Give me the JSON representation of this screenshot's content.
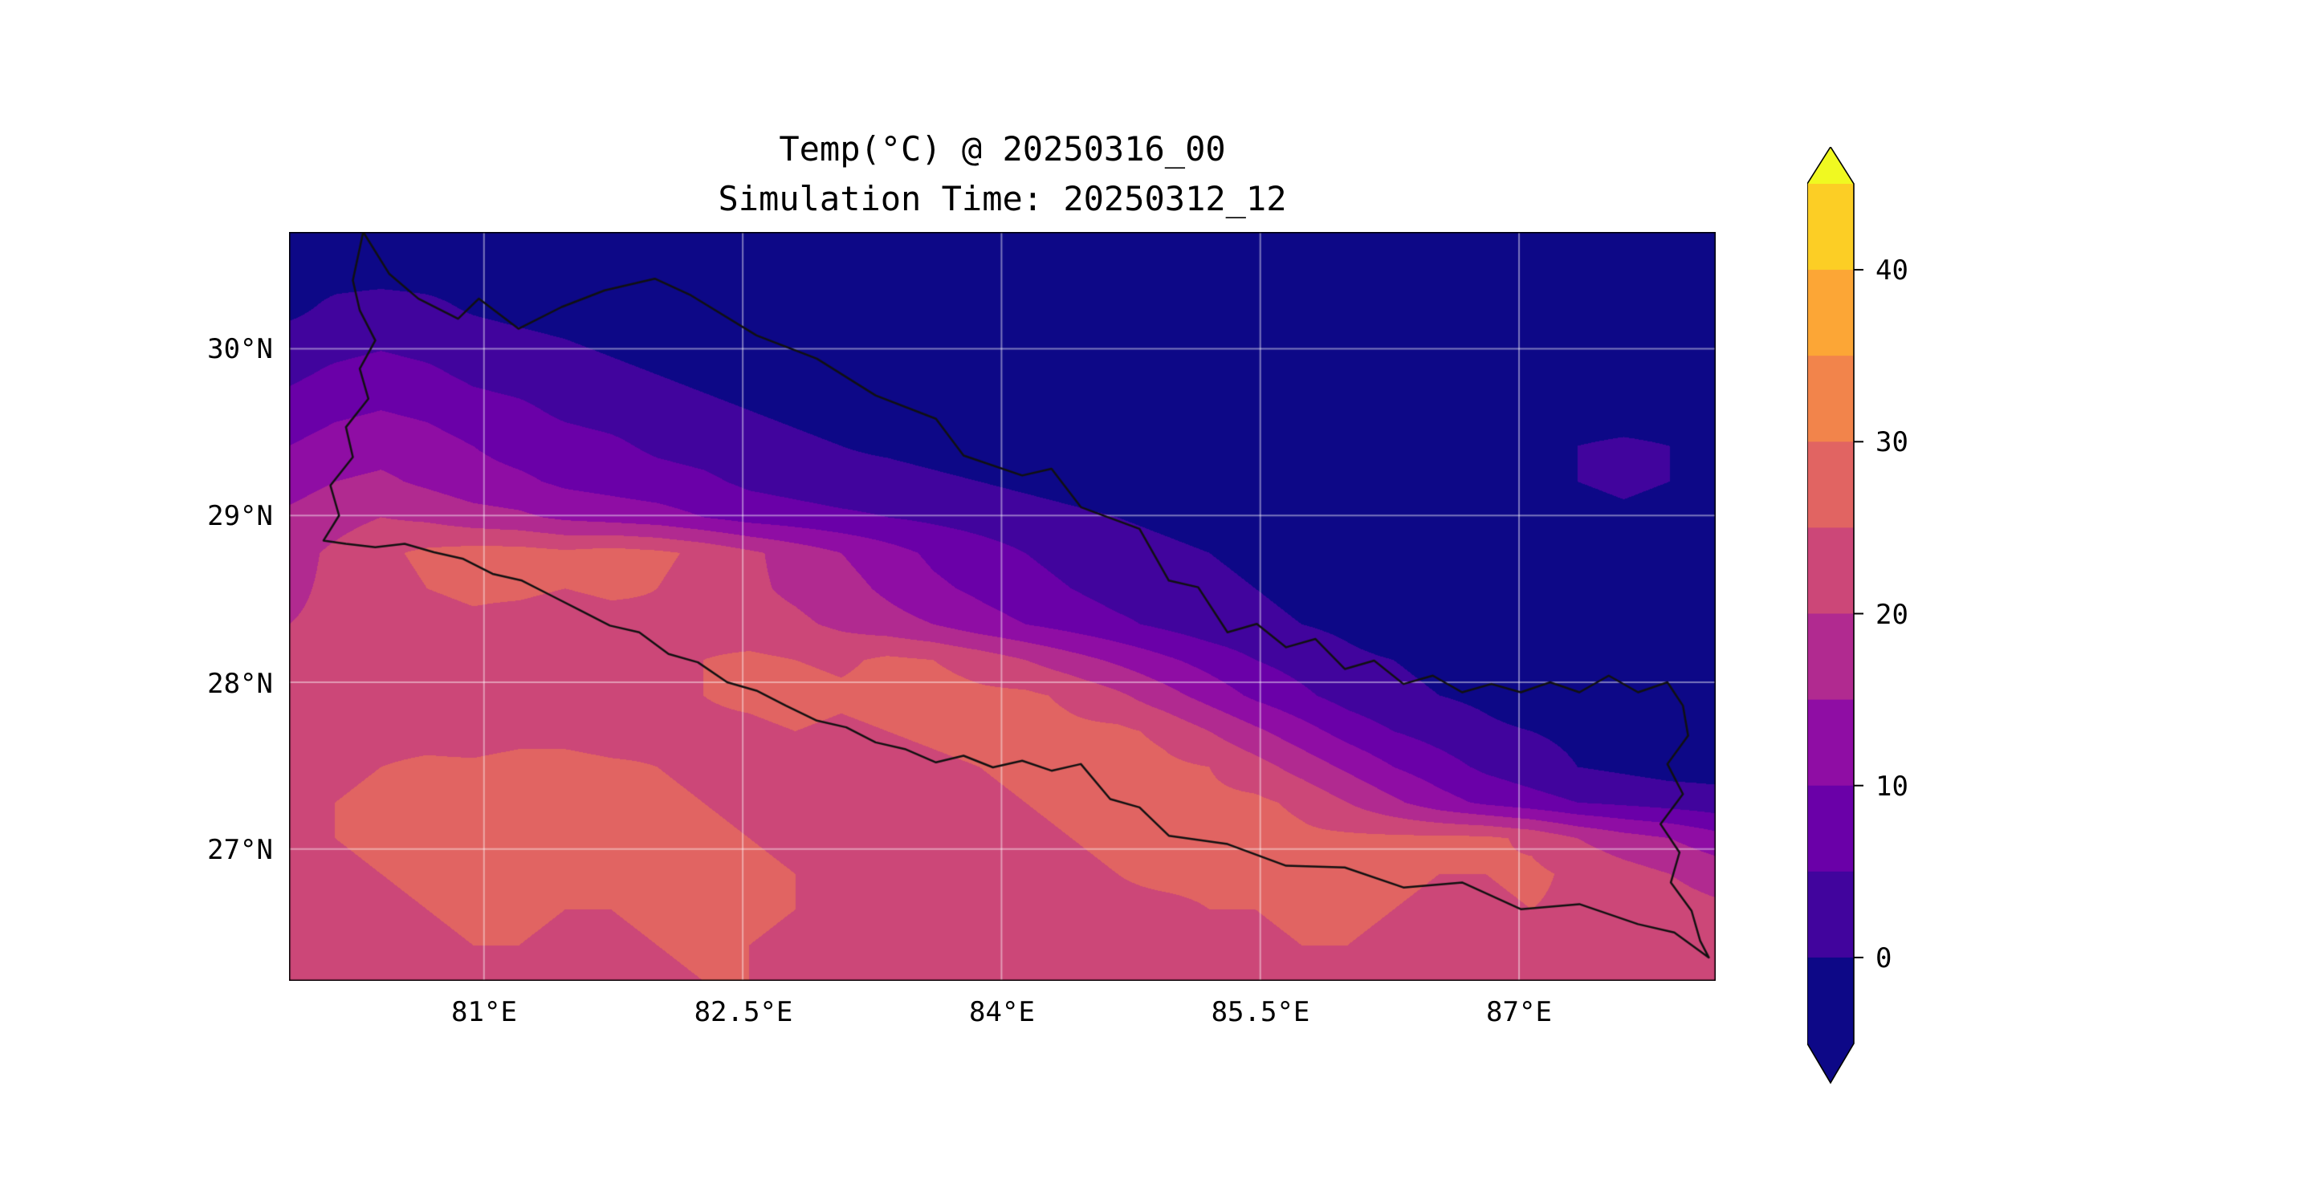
{
  "title": {
    "line1": "Temp(°C) @ 20250316_00",
    "line2": "Simulation Time: 20250312_12"
  },
  "chart_data": {
    "type": "heatmap",
    "title": "Temp(°C) @ 20250316_00",
    "subtitle": "Simulation Time: 20250312_12",
    "variable": "Temp(°C)",
    "valid_time": "20250316_00",
    "simulation_time": "20250312_12",
    "lon_range": [
      79.87,
      88.14
    ],
    "lat_range": [
      26.21,
      30.7
    ],
    "x_ticks": [
      {
        "label": "81°E",
        "value": 81.0
      },
      {
        "label": "82.5°E",
        "value": 82.5
      },
      {
        "label": "84°E",
        "value": 84.0
      },
      {
        "label": "85.5°E",
        "value": 85.5
      },
      {
        "label": "87°E",
        "value": 87.0
      }
    ],
    "y_ticks": [
      {
        "label": "30°N",
        "value": 30.0
      },
      {
        "label": "29°N",
        "value": 29.0
      },
      {
        "label": "28°N",
        "value": 28.0
      },
      {
        "label": "27°N",
        "value": 27.0
      }
    ],
    "levels": [
      -5,
      0,
      5,
      10,
      15,
      20,
      25,
      30,
      35,
      40,
      45
    ],
    "band_colors": [
      "#0d0887",
      "#41049d",
      "#6a00a8",
      "#8f0da4",
      "#b12a90",
      "#cc4778",
      "#e16462",
      "#f2844b",
      "#fca636",
      "#fcce25"
    ],
    "under_color": "#0d0887",
    "over_color": "#f0f921",
    "colorbar_ticks": [
      40,
      30,
      20,
      10,
      0
    ],
    "colorbar_tick_labels": [
      "40",
      "30",
      "20",
      "10",
      "0"
    ],
    "colorbar_extend": "both",
    "grid_lines": true,
    "grid_line_color": "rgba(255,255,255,0.45)",
    "border_color": "#111111",
    "grid": [
      [
        -3,
        -3,
        -3,
        -3,
        -3,
        -3,
        -3,
        -3,
        -3,
        -3,
        -3,
        -3,
        -3,
        -3,
        -3,
        -3,
        -3,
        -3,
        -3,
        -3,
        -3,
        -3,
        -3,
        -3,
        -3,
        -3,
        -3,
        -3,
        -3,
        -3,
        -3,
        -3
      ],
      [
        -3,
        -3,
        -3,
        -3,
        -3,
        -3,
        -3,
        -3,
        -3,
        -3,
        -3,
        -3,
        -3,
        -3,
        -3,
        -3,
        -3,
        -3,
        -3,
        -3,
        -3,
        -3,
        -3,
        -3,
        -3,
        -3,
        -3,
        -3,
        -3,
        -3,
        -3,
        -3
      ],
      [
        -2,
        1,
        2,
        1,
        -1,
        -2,
        -3,
        -3,
        -3,
        -3,
        -3,
        -3,
        -3,
        -3,
        -3,
        -3,
        -3,
        -3,
        -3,
        -3,
        -3,
        -3,
        -3,
        -3,
        -3,
        -3,
        -3,
        -3,
        -3,
        -3,
        -3,
        -3
      ],
      [
        2,
        3,
        4,
        3,
        2,
        1,
        0,
        -1,
        -2,
        -3,
        -3,
        -3,
        -3,
        -3,
        -3,
        -3,
        -3,
        -3,
        -3,
        -3,
        -3,
        -3,
        -3,
        -3,
        -3,
        -3,
        -3,
        -3,
        -3,
        -3,
        -3,
        -3
      ],
      [
        4,
        6,
        7,
        6,
        4,
        3,
        2,
        1,
        0,
        -1,
        -2,
        -3,
        -3,
        -3,
        -3,
        -3,
        -3,
        -3,
        -3,
        -3,
        -3,
        -3,
        -3,
        -3,
        -3,
        -3,
        -3,
        -3,
        -3,
        -3,
        -3,
        -3
      ],
      [
        7,
        9,
        10,
        9,
        7,
        6,
        4,
        3,
        2,
        1,
        0,
        -1,
        -2,
        -3,
        -3,
        -3,
        -3,
        -3,
        -3,
        -3,
        -3,
        -3,
        -3,
        -3,
        -3,
        -3,
        -3,
        -3,
        -3,
        -3,
        -3,
        -3
      ],
      [
        10,
        12,
        13,
        12,
        10,
        8,
        7,
        6,
        4,
        3,
        2,
        1,
        0,
        -1,
        -2,
        -3,
        -3,
        -3,
        -3,
        -3,
        -3,
        -3,
        -3,
        -3,
        -3,
        -3,
        -3,
        -3,
        0,
        1,
        0,
        -2
      ],
      [
        13,
        15,
        16,
        14,
        12,
        11,
        9,
        8,
        7,
        6,
        4,
        3,
        2,
        2,
        1,
        0,
        -1,
        -2,
        -3,
        -3,
        -3,
        -3,
        -3,
        -3,
        -3,
        -3,
        -3,
        -3,
        0,
        1,
        0,
        -2
      ],
      [
        16,
        18,
        20,
        19,
        17,
        16,
        14,
        13,
        12,
        10,
        8,
        7,
        6,
        5,
        4,
        3,
        2,
        1,
        0,
        -1,
        -2,
        -3,
        -3,
        -3,
        -3,
        -3,
        -3,
        -3,
        -2,
        -1,
        -2,
        -3
      ],
      [
        18,
        21,
        24,
        26,
        27,
        27,
        26,
        27,
        26,
        24,
        21,
        18,
        15,
        12,
        9,
        7,
        5,
        3,
        2,
        1,
        0,
        -1,
        -3,
        -3,
        -3,
        -3,
        -3,
        -3,
        -3,
        -3,
        -3,
        -3
      ],
      [
        19,
        21,
        23,
        25,
        26,
        26,
        25,
        26,
        25,
        23,
        21,
        19,
        17,
        14,
        11,
        9,
        7,
        5,
        3,
        2,
        1,
        0,
        -1,
        -3,
        -3,
        -3,
        -3,
        -3,
        -3,
        -3,
        -3,
        -3
      ],
      [
        20,
        21,
        22,
        23,
        24,
        23,
        22,
        23,
        24,
        23,
        22,
        21,
        19,
        17,
        15,
        12,
        10,
        8,
        6,
        4,
        2,
        1,
        0,
        -1,
        -3,
        -3,
        -3,
        -3,
        -3,
        -3,
        -3,
        -3
      ],
      [
        21,
        21,
        22,
        22,
        23,
        22,
        22,
        23,
        24,
        25,
        26,
        25,
        24,
        26,
        25,
        23,
        20,
        17,
        14,
        11,
        8,
        5,
        3,
        1,
        0,
        -1,
        -3,
        -3,
        -3,
        -3,
        -3,
        -3
      ],
      [
        21,
        22,
        22,
        23,
        22,
        22,
        23,
        23,
        24,
        25,
        26,
        27,
        26,
        27,
        27,
        26,
        26,
        24,
        21,
        17,
        13,
        9,
        6,
        3,
        1,
        0,
        -1,
        -3,
        -3,
        -3,
        -3,
        -3
      ],
      [
        22,
        22,
        23,
        23,
        22,
        23,
        23,
        22,
        23,
        24,
        24,
        25,
        24,
        25,
        26,
        27,
        27,
        26,
        26,
        24,
        20,
        16,
        12,
        8,
        5,
        3,
        1,
        0,
        -1,
        -2,
        -2,
        -1
      ],
      [
        23,
        24,
        25,
        26,
        26,
        27,
        27,
        26,
        25,
        24,
        23,
        22,
        22,
        23,
        24,
        25,
        26,
        27,
        27,
        26,
        25,
        22,
        18,
        14,
        10,
        7,
        4,
        2,
        0,
        -1,
        -2,
        -2
      ],
      [
        24,
        25,
        26,
        27,
        27,
        28,
        27,
        27,
        26,
        25,
        24,
        23,
        22,
        23,
        23,
        24,
        25,
        26,
        27,
        27,
        26,
        26,
        24,
        20,
        16,
        12,
        9,
        7,
        5,
        4,
        3,
        2
      ],
      [
        24,
        25,
        26,
        27,
        28,
        27,
        27,
        26,
        26,
        26,
        25,
        24,
        23,
        23,
        24,
        24,
        24,
        25,
        26,
        27,
        27,
        27,
        26,
        26,
        26,
        26,
        26,
        24,
        20,
        17,
        15,
        12
      ],
      [
        23,
        24,
        25,
        26,
        27,
        27,
        26,
        26,
        27,
        27,
        26,
        25,
        24,
        24,
        25,
        25,
        24,
        24,
        25,
        26,
        26,
        26,
        27,
        27,
        26,
        25,
        25,
        26,
        24,
        22,
        20,
        18
      ],
      [
        22,
        23,
        24,
        25,
        26,
        26,
        25,
        25,
        26,
        27,
        26,
        25,
        24,
        23,
        24,
        24,
        23,
        23,
        24,
        24,
        25,
        25,
        26,
        26,
        25,
        24,
        24,
        25,
        24,
        23,
        22,
        21
      ],
      [
        22,
        22,
        23,
        24,
        25,
        25,
        24,
        24,
        25,
        26,
        25,
        24,
        23,
        23,
        23,
        23,
        22,
        23,
        23,
        24,
        24,
        24,
        25,
        25,
        24,
        23,
        23,
        24,
        23,
        22,
        22,
        21
      ],
      [
        22,
        22,
        23,
        24,
        24,
        24,
        24,
        23,
        24,
        25,
        25,
        24,
        23,
        22,
        23,
        23,
        22,
        22,
        23,
        23,
        24,
        24,
        24,
        24,
        23,
        23,
        22,
        23,
        23,
        22,
        21,
        21
      ]
    ],
    "border": [
      [
        80.3,
        30.7
      ],
      [
        80.45,
        30.45
      ],
      [
        80.62,
        30.3
      ],
      [
        80.85,
        30.18
      ],
      [
        80.97,
        30.3
      ],
      [
        81.2,
        30.12
      ],
      [
        81.45,
        30.25
      ],
      [
        81.7,
        30.35
      ],
      [
        81.99,
        30.42
      ],
      [
        82.2,
        30.32
      ],
      [
        82.58,
        30.08
      ],
      [
        82.93,
        29.94
      ],
      [
        83.27,
        29.72
      ],
      [
        83.62,
        29.58
      ],
      [
        83.78,
        29.36
      ],
      [
        84.12,
        29.24
      ],
      [
        84.29,
        29.28
      ],
      [
        84.46,
        29.05
      ],
      [
        84.8,
        28.92
      ],
      [
        84.97,
        28.61
      ],
      [
        85.14,
        28.57
      ],
      [
        85.31,
        28.3
      ],
      [
        85.48,
        28.35
      ],
      [
        85.65,
        28.21
      ],
      [
        85.82,
        28.26
      ],
      [
        85.99,
        28.08
      ],
      [
        86.16,
        28.13
      ],
      [
        86.33,
        27.99
      ],
      [
        86.5,
        28.04
      ],
      [
        86.67,
        27.94
      ],
      [
        86.84,
        27.99
      ],
      [
        87.01,
        27.94
      ],
      [
        87.18,
        28.0
      ],
      [
        87.35,
        27.94
      ],
      [
        87.52,
        28.04
      ],
      [
        87.69,
        27.94
      ],
      [
        87.86,
        28.0
      ],
      [
        87.95,
        27.86
      ],
      [
        87.98,
        27.68
      ],
      [
        87.86,
        27.51
      ],
      [
        87.95,
        27.33
      ],
      [
        87.82,
        27.15
      ],
      [
        87.93,
        26.98
      ],
      [
        87.88,
        26.8
      ],
      [
        88.0,
        26.63
      ],
      [
        88.05,
        26.45
      ],
      [
        88.1,
        26.35
      ],
      [
        87.9,
        26.5
      ],
      [
        87.69,
        26.55
      ],
      [
        87.35,
        26.67
      ],
      [
        87.01,
        26.64
      ],
      [
        86.67,
        26.8
      ],
      [
        86.33,
        26.77
      ],
      [
        85.99,
        26.89
      ],
      [
        85.65,
        26.9
      ],
      [
        85.31,
        27.03
      ],
      [
        84.97,
        27.08
      ],
      [
        84.8,
        27.25
      ],
      [
        84.63,
        27.3
      ],
      [
        84.46,
        27.51
      ],
      [
        84.29,
        27.47
      ],
      [
        84.12,
        27.53
      ],
      [
        83.95,
        27.49
      ],
      [
        83.78,
        27.56
      ],
      [
        83.62,
        27.52
      ],
      [
        83.44,
        27.6
      ],
      [
        83.27,
        27.64
      ],
      [
        83.1,
        27.73
      ],
      [
        82.93,
        27.77
      ],
      [
        82.75,
        27.86
      ],
      [
        82.58,
        27.95
      ],
      [
        82.41,
        28.0
      ],
      [
        82.24,
        28.12
      ],
      [
        82.07,
        28.17
      ],
      [
        81.9,
        28.3
      ],
      [
        81.73,
        28.34
      ],
      [
        81.56,
        28.43
      ],
      [
        81.39,
        28.52
      ],
      [
        81.22,
        28.61
      ],
      [
        81.05,
        28.65
      ],
      [
        80.88,
        28.74
      ],
      [
        80.71,
        28.78
      ],
      [
        80.54,
        28.83
      ],
      [
        80.37,
        28.81
      ],
      [
        80.2,
        28.83
      ],
      [
        80.07,
        28.85
      ],
      [
        80.16,
        29.0
      ],
      [
        80.11,
        29.18
      ],
      [
        80.24,
        29.35
      ],
      [
        80.2,
        29.53
      ],
      [
        80.33,
        29.7
      ],
      [
        80.28,
        29.88
      ],
      [
        80.37,
        30.05
      ],
      [
        80.28,
        30.23
      ],
      [
        80.24,
        30.41
      ],
      [
        80.3,
        30.7
      ]
    ]
  }
}
